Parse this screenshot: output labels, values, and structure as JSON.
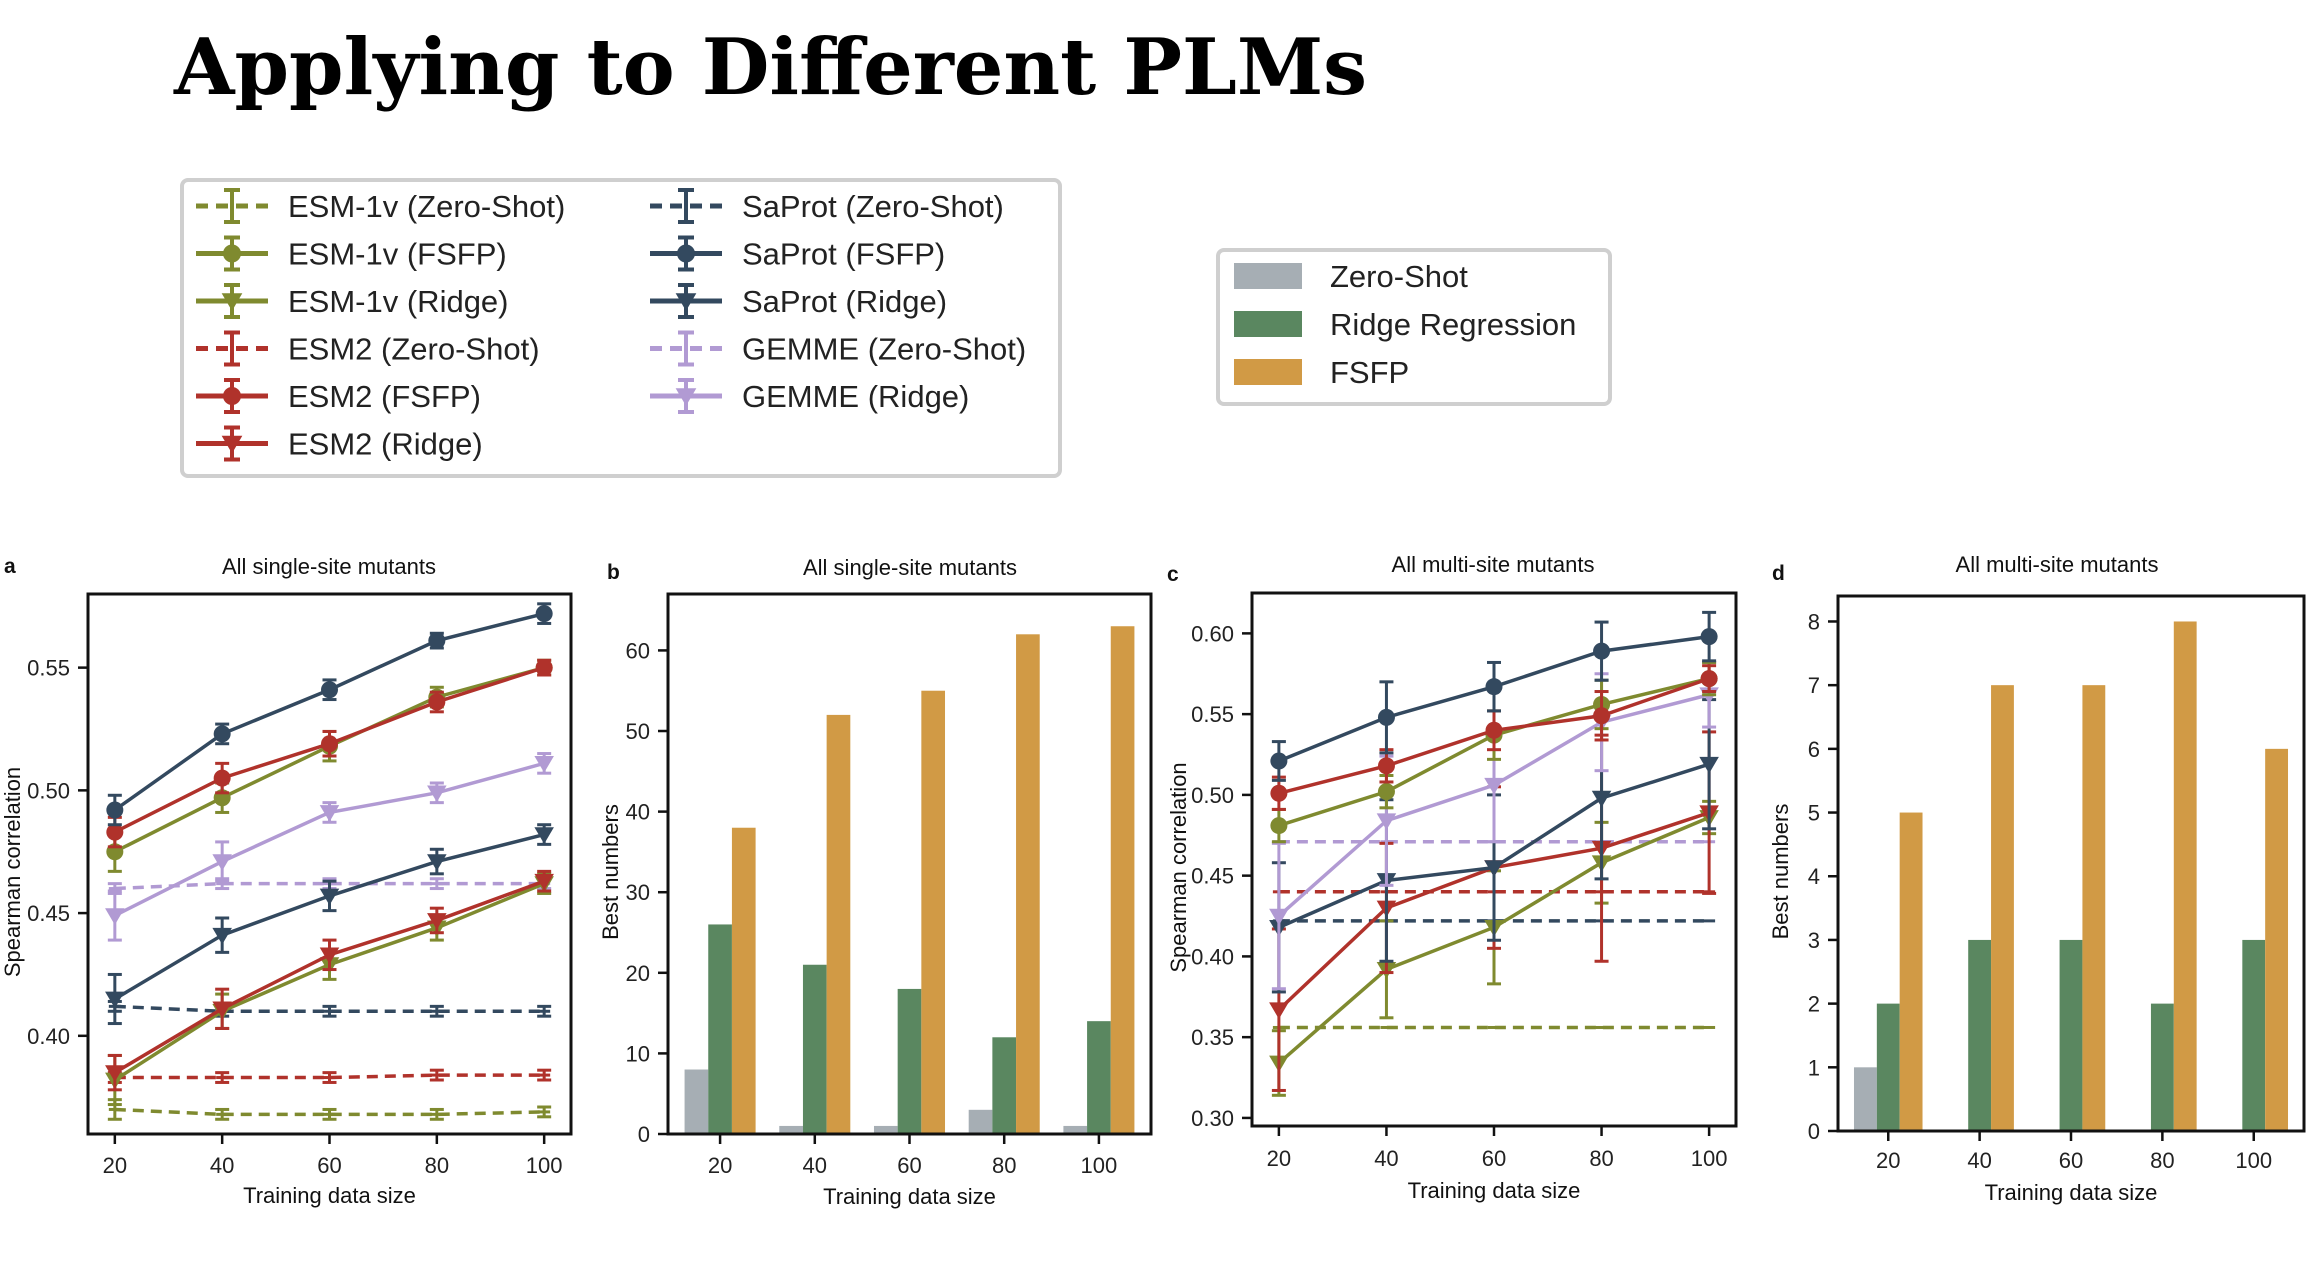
{
  "page": {
    "title": "Applying to Different PLMs"
  },
  "colors": {
    "esm1v": "#7f8a2f",
    "esm2": "#b0322b",
    "saprot": "#33495f",
    "gemme": "#b19ad3",
    "zero_shot_bar": "#a6aeb4",
    "ridge_bar": "#5a8760",
    "fsfp_bar": "#d19a45"
  },
  "legend_lines": {
    "col1": [
      "ESM-1v (Zero-Shot)",
      "ESM-1v (FSFP)",
      "ESM-1v (Ridge)",
      "ESM2 (Zero-Shot)",
      "ESM2 (FSFP)",
      "ESM2 (Ridge)"
    ],
    "col2": [
      "SaProt (Zero-Shot)",
      "SaProt (FSFP)",
      "SaProt (Ridge)",
      "GEMME (Zero-Shot)",
      "GEMME (Ridge)"
    ]
  },
  "legend_bars": [
    "Zero-Shot",
    "Ridge Regression",
    "FSFP"
  ],
  "chart_data": [
    {
      "id": "a",
      "type": "line",
      "title": "All single-site mutants",
      "xlabel": "Training data size",
      "ylabel": "Spearman correlation",
      "x": [
        20,
        40,
        60,
        80,
        100
      ],
      "xlim": [
        15,
        105
      ],
      "ylim": [
        0.36,
        0.58
      ],
      "xticks": [
        "20",
        "40",
        "60",
        "80",
        "100"
      ],
      "yticks": [
        0.4,
        0.45,
        0.5,
        0.55
      ],
      "ytick_labels": [
        "0.40",
        "0.45",
        "0.50",
        "0.55"
      ],
      "series": [
        {
          "name": "ESM-1v (Zero-Shot)",
          "color": "#7f8a2f",
          "dash": true,
          "marker": "cap",
          "values": [
            0.37,
            0.368,
            0.368,
            0.368,
            0.369
          ],
          "err": [
            0.004,
            0.002,
            0.002,
            0.002,
            0.002
          ]
        },
        {
          "name": "ESM2 (Zero-Shot)",
          "color": "#b0322b",
          "dash": true,
          "marker": "cap",
          "values": [
            0.383,
            0.383,
            0.383,
            0.384,
            0.384
          ],
          "err": [
            0.002,
            0.002,
            0.002,
            0.002,
            0.002
          ]
        },
        {
          "name": "SaProt (Zero-Shot)",
          "color": "#33495f",
          "dash": true,
          "marker": "cap",
          "values": [
            0.412,
            0.41,
            0.41,
            0.41,
            0.41
          ],
          "err": [
            0.002,
            0.002,
            0.002,
            0.002,
            0.002
          ]
        },
        {
          "name": "GEMME (Zero-Shot)",
          "color": "#b19ad3",
          "dash": true,
          "marker": "cap",
          "values": [
            0.46,
            0.462,
            0.462,
            0.462,
            0.462
          ],
          "err": [
            0.002,
            0.002,
            0.002,
            0.002,
            0.002
          ]
        },
        {
          "name": "ESM-1v (Ridge)",
          "color": "#7f8a2f",
          "dash": false,
          "marker": "tri",
          "values": [
            0.382,
            0.41,
            0.429,
            0.444,
            0.462
          ],
          "err": [
            0.01,
            0.007,
            0.006,
            0.005,
            0.004
          ]
        },
        {
          "name": "ESM2 (Ridge)",
          "color": "#b0322b",
          "dash": false,
          "marker": "tri",
          "values": [
            0.385,
            0.411,
            0.433,
            0.447,
            0.463
          ],
          "err": [
            0.007,
            0.008,
            0.006,
            0.005,
            0.004
          ]
        },
        {
          "name": "SaProt (Ridge)",
          "color": "#33495f",
          "dash": false,
          "marker": "tri",
          "values": [
            0.415,
            0.441,
            0.457,
            0.471,
            0.482
          ],
          "err": [
            0.01,
            0.007,
            0.006,
            0.005,
            0.004
          ]
        },
        {
          "name": "GEMME (Ridge)",
          "color": "#b19ad3",
          "dash": false,
          "marker": "tri",
          "values": [
            0.449,
            0.471,
            0.491,
            0.499,
            0.511
          ],
          "err": [
            0.01,
            0.008,
            0.004,
            0.004,
            0.004
          ]
        },
        {
          "name": "ESM-1v (FSFP)",
          "color": "#7f8a2f",
          "dash": false,
          "marker": "circle",
          "values": [
            0.475,
            0.497,
            0.518,
            0.538,
            0.55
          ],
          "err": [
            0.008,
            0.006,
            0.006,
            0.004,
            0.003
          ]
        },
        {
          "name": "ESM2 (FSFP)",
          "color": "#b0322b",
          "dash": false,
          "marker": "circle",
          "values": [
            0.483,
            0.505,
            0.519,
            0.536,
            0.55
          ],
          "err": [
            0.006,
            0.006,
            0.005,
            0.004,
            0.003
          ]
        },
        {
          "name": "SaProt (FSFP)",
          "color": "#33495f",
          "dash": false,
          "marker": "circle",
          "values": [
            0.492,
            0.523,
            0.541,
            0.561,
            0.572
          ],
          "err": [
            0.006,
            0.004,
            0.004,
            0.003,
            0.004
          ]
        }
      ]
    },
    {
      "id": "b",
      "type": "bar",
      "title": "All single-site mutants",
      "xlabel": "Training data size",
      "ylabel": "Best numbers",
      "categories": [
        "20",
        "40",
        "60",
        "80",
        "100"
      ],
      "ylim": [
        0,
        67
      ],
      "yticks": [
        0,
        10,
        20,
        30,
        40,
        50,
        60
      ],
      "ytick_labels": [
        "0",
        "10",
        "20",
        "30",
        "40",
        "50",
        "60"
      ],
      "series": [
        {
          "name": "Zero-Shot",
          "color": "#a6aeb4",
          "values": [
            8,
            1,
            1,
            3,
            1
          ]
        },
        {
          "name": "Ridge Regression",
          "color": "#5a8760",
          "values": [
            26,
            21,
            18,
            12,
            14
          ]
        },
        {
          "name": "FSFP",
          "color": "#d19a45",
          "values": [
            38,
            52,
            55,
            62,
            63
          ]
        }
      ]
    },
    {
      "id": "c",
      "type": "line",
      "title": "All multi-site mutants",
      "xlabel": "Training data size",
      "ylabel": "Spearman correlation",
      "x": [
        20,
        40,
        60,
        80,
        100
      ],
      "xlim": [
        15,
        105
      ],
      "ylim": [
        0.295,
        0.625
      ],
      "xticks": [
        "20",
        "40",
        "60",
        "80",
        "100"
      ],
      "yticks": [
        0.3,
        0.35,
        0.4,
        0.45,
        0.5,
        0.55,
        0.6
      ],
      "ytick_labels": [
        "0.30",
        "0.35",
        "0.40",
        "0.45",
        "0.50",
        "0.55",
        "0.60"
      ],
      "series": [
        {
          "name": "ESM-1v (Zero-Shot)",
          "color": "#7f8a2f",
          "dash": true,
          "marker": "cap",
          "values": [
            0.356,
            0.356,
            0.356,
            0.356,
            0.356
          ],
          "err": [
            0,
            0,
            0,
            0,
            0
          ]
        },
        {
          "name": "ESM2 (Zero-Shot)",
          "color": "#b0322b",
          "dash": true,
          "marker": "cap",
          "values": [
            0.44,
            0.44,
            0.44,
            0.44,
            0.44
          ],
          "err": [
            0,
            0,
            0,
            0,
            0
          ]
        },
        {
          "name": "SaProt (Zero-Shot)",
          "color": "#33495f",
          "dash": true,
          "marker": "cap",
          "values": [
            0.422,
            0.422,
            0.422,
            0.422,
            0.422
          ],
          "err": [
            0,
            0,
            0,
            0,
            0
          ]
        },
        {
          "name": "GEMME (Zero-Shot)",
          "color": "#b19ad3",
          "dash": true,
          "marker": "cap",
          "values": [
            0.471,
            0.471,
            0.471,
            0.471,
            0.471
          ],
          "err": [
            0,
            0,
            0,
            0,
            0
          ]
        },
        {
          "name": "ESM-1v (Ridge)",
          "color": "#7f8a2f",
          "dash": false,
          "marker": "tri",
          "values": [
            0.334,
            0.392,
            0.418,
            0.458,
            0.486
          ],
          "err": [
            0.02,
            0.03,
            0.035,
            0.025,
            0.01
          ]
        },
        {
          "name": "ESM2 (Ridge)",
          "color": "#b0322b",
          "dash": false,
          "marker": "tri",
          "values": [
            0.367,
            0.43,
            0.455,
            0.467,
            0.489
          ],
          "err": [
            0.05,
            0.04,
            0.05,
            0.07,
            0.05
          ]
        },
        {
          "name": "SaProt (Ridge)",
          "color": "#33495f",
          "dash": false,
          "marker": "tri",
          "values": [
            0.418,
            0.447,
            0.455,
            0.498,
            0.519
          ],
          "err": [
            0.04,
            0.05,
            0.045,
            0.05,
            0.04
          ]
        },
        {
          "name": "GEMME (Ridge)",
          "color": "#b19ad3",
          "dash": false,
          "marker": "tri",
          "values": [
            0.425,
            0.484,
            0.506,
            0.545,
            0.562
          ],
          "err": [
            0.045,
            0.04,
            0.035,
            0.03,
            0.02
          ]
        },
        {
          "name": "ESM-1v (FSFP)",
          "color": "#7f8a2f",
          "dash": false,
          "marker": "circle",
          "values": [
            0.481,
            0.502,
            0.537,
            0.556,
            0.572
          ],
          "err": [
            0.01,
            0.01,
            0.015,
            0.015,
            0.01
          ]
        },
        {
          "name": "ESM2 (FSFP)",
          "color": "#b0322b",
          "dash": false,
          "marker": "circle",
          "values": [
            0.501,
            0.518,
            0.54,
            0.549,
            0.572
          ],
          "err": [
            0.01,
            0.01,
            0.012,
            0.015,
            0.008
          ]
        },
        {
          "name": "SaProt (FSFP)",
          "color": "#33495f",
          "dash": false,
          "marker": "circle",
          "values": [
            0.521,
            0.548,
            0.567,
            0.589,
            0.598
          ],
          "err": [
            0.012,
            0.022,
            0.015,
            0.018,
            0.015
          ]
        }
      ]
    },
    {
      "id": "d",
      "type": "bar",
      "title": "All multi-site mutants",
      "xlabel": "Training data size",
      "ylabel": "Best numbers",
      "categories": [
        "20",
        "40",
        "60",
        "80",
        "100"
      ],
      "ylim": [
        0,
        8.4
      ],
      "yticks": [
        0,
        1,
        2,
        3,
        4,
        5,
        6,
        7,
        8
      ],
      "ytick_labels": [
        "0",
        "1",
        "2",
        "3",
        "4",
        "5",
        "6",
        "7",
        "8"
      ],
      "series": [
        {
          "name": "Zero-Shot",
          "color": "#a6aeb4",
          "values": [
            1,
            0,
            0,
            0,
            0
          ]
        },
        {
          "name": "Ridge Regression",
          "color": "#5a8760",
          "values": [
            2,
            3,
            3,
            2,
            3
          ]
        },
        {
          "name": "FSFP",
          "color": "#d19a45",
          "values": [
            5,
            7,
            7,
            8,
            6
          ]
        }
      ]
    }
  ]
}
